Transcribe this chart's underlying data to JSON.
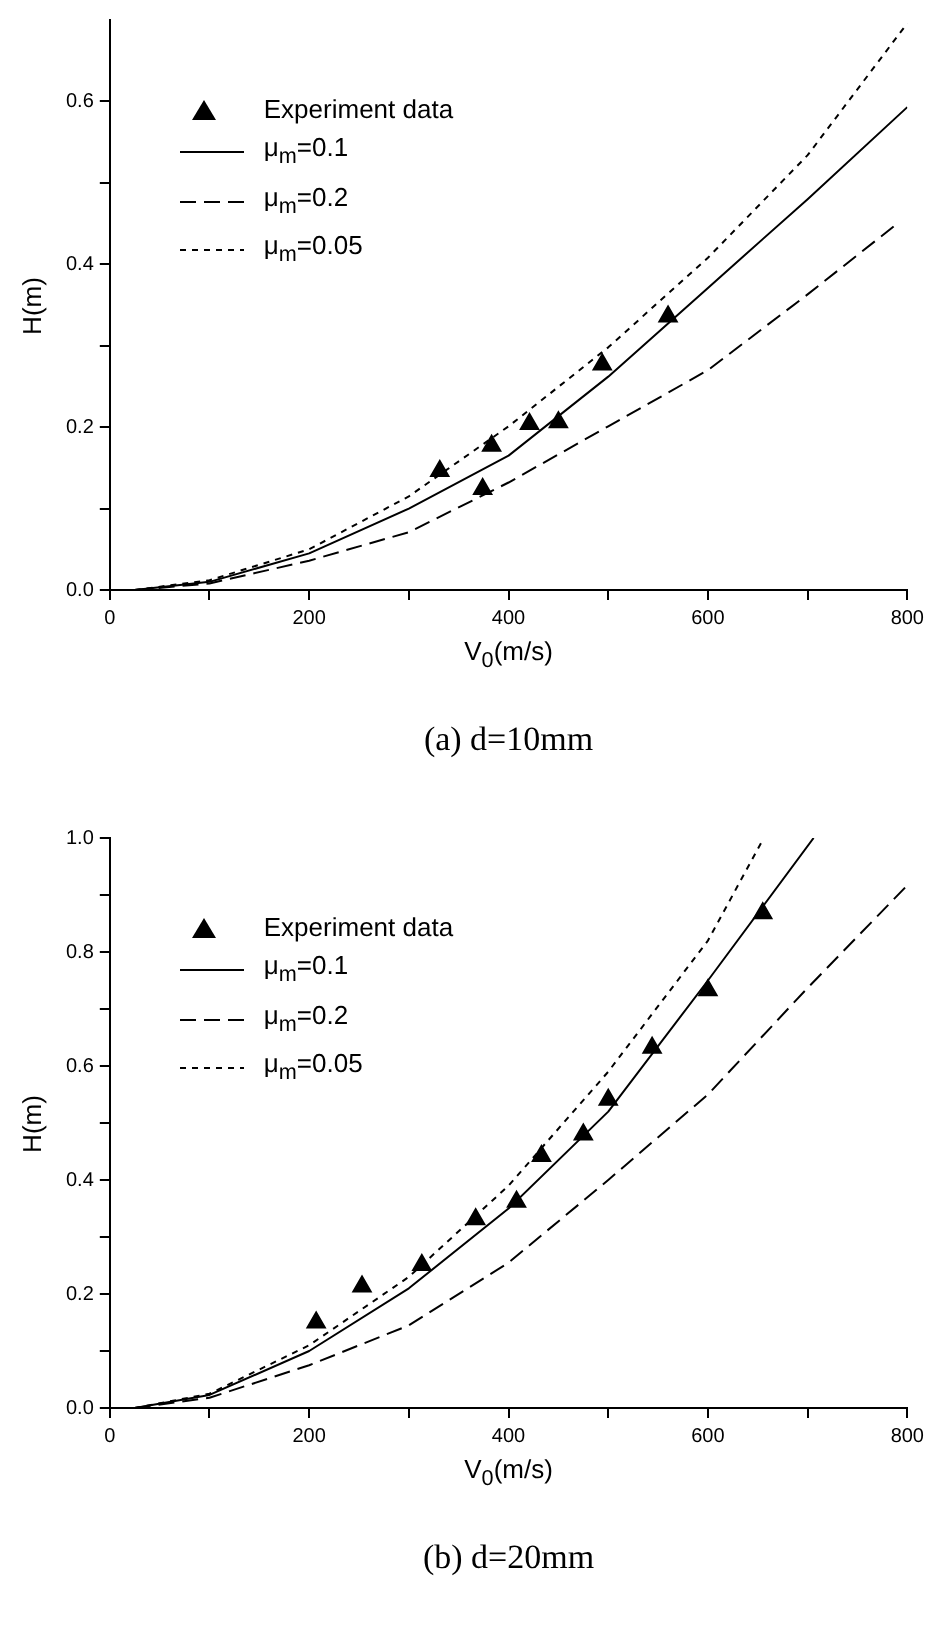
{
  "chart_data": [
    {
      "type": "line",
      "xlabel": "V$_{0}$(m/s)",
      "ylabel": "H(m)",
      "annotations": [
        "(a) d=10mm"
      ],
      "xlim": [
        0,
        800
      ],
      "xticks": [
        0,
        {
          "value": 100,
          "label": null
        },
        200,
        {
          "value": 300,
          "label": null
        },
        400,
        {
          "value": 500,
          "label": null
        },
        600,
        {
          "value": 700,
          "label": null
        },
        800
      ],
      "ylim": [
        0,
        0.7
      ],
      "yticks": [
        {
          "value": 0,
          "label": "0.0"
        },
        {
          "value": 0.1,
          "label": null
        },
        {
          "value": 0.2,
          "label": "0.2"
        },
        {
          "value": 0.3,
          "label": null
        },
        {
          "value": 0.4,
          "label": "0.4"
        },
        {
          "value": 0.5,
          "label": null
        },
        {
          "value": 0.6,
          "label": "0.6"
        }
      ],
      "grid": false,
      "legend": "top left",
      "series": [
        {
          "name": "Experiment data",
          "type": "scatter",
          "marker": "triangle",
          "color": "#000000",
          "x": [
            331,
            374,
            383,
            421,
            450,
            494,
            560
          ],
          "values": [
            0.146,
            0.124,
            0.177,
            0.204,
            0.206,
            0.277,
            0.336
          ]
        },
        {
          "name": "μ$_{m}$=0.1",
          "type": "line",
          "line_style": "solid",
          "color": "#000000",
          "x": [
            25,
            100,
            200,
            300,
            400,
            500,
            600,
            700,
            800
          ],
          "values": [
            0,
            0.01,
            0.045,
            0.1,
            0.165,
            0.262,
            0.371,
            0.48,
            0.593
          ]
        },
        {
          "name": "μ$_{m}$=0.2",
          "type": "line",
          "line_style": "dashed",
          "color": "#000000",
          "x": [
            25,
            100,
            200,
            300,
            400,
            500,
            600,
            700,
            790
          ],
          "values": [
            0,
            0.008,
            0.036,
            0.071,
            0.132,
            0.201,
            0.27,
            0.363,
            0.45
          ]
        },
        {
          "name": "μ$_{m}$=0.05",
          "type": "line",
          "line_style": "dotted",
          "color": "#000000",
          "x": [
            25,
            100,
            200,
            300,
            400,
            500,
            600,
            700,
            800
          ],
          "values": [
            0,
            0.012,
            0.05,
            0.115,
            0.201,
            0.298,
            0.408,
            0.534,
            0.696
          ]
        }
      ]
    },
    {
      "type": "line",
      "xlabel": "V$_{0}$(m/s)",
      "ylabel": "H(m)",
      "annotations": [
        "(b) d=20mm"
      ],
      "xlim": [
        0,
        800
      ],
      "xticks": [
        0,
        {
          "value": 100,
          "label": null
        },
        200,
        {
          "value": 300,
          "label": null
        },
        400,
        {
          "value": 500,
          "label": null
        },
        600,
        {
          "value": 700,
          "label": null
        },
        800
      ],
      "ylim": [
        0,
        1.0
      ],
      "yticks": [
        {
          "value": 0,
          "label": "0.0"
        },
        {
          "value": 0.1,
          "label": null
        },
        {
          "value": 0.2,
          "label": "0.2"
        },
        {
          "value": 0.3,
          "label": null
        },
        {
          "value": 0.4,
          "label": "0.4"
        },
        {
          "value": 0.5,
          "label": null
        },
        {
          "value": 0.6,
          "label": "0.6"
        },
        {
          "value": 0.7,
          "label": null
        },
        {
          "value": 0.8,
          "label": "0.8"
        },
        {
          "value": 0.9,
          "label": null
        },
        {
          "value": 1.0,
          "label": "1.0"
        }
      ],
      "grid": false,
      "legend": "top left",
      "series": [
        {
          "name": "Experiment data",
          "type": "scatter",
          "marker": "triangle",
          "color": "#000000",
          "x": [
            207,
            253,
            313,
            367,
            408,
            433,
            475,
            500,
            544,
            600,
            655
          ],
          "values": [
            0.15,
            0.213,
            0.251,
            0.331,
            0.362,
            0.442,
            0.48,
            0.541,
            0.632,
            0.733,
            0.868
          ]
        },
        {
          "name": "μ$_{m}$=0.1",
          "type": "line",
          "line_style": "solid",
          "color": "#000000",
          "x": [
            25,
            100,
            200,
            300,
            400,
            500,
            600,
            706
          ],
          "values": [
            0,
            0.023,
            0.1,
            0.21,
            0.35,
            0.52,
            0.75,
            1.0
          ]
        },
        {
          "name": "μ$_{m}$=0.2",
          "type": "line",
          "line_style": "dashed",
          "color": "#000000",
          "x": [
            25,
            100,
            200,
            300,
            400,
            500,
            600,
            700,
            800
          ],
          "values": [
            0,
            0.018,
            0.075,
            0.145,
            0.255,
            0.4,
            0.55,
            0.737,
            0.917
          ]
        },
        {
          "name": "μ$_{m}$=0.05",
          "type": "line",
          "line_style": "dotted",
          "color": "#000000",
          "x": [
            25,
            100,
            200,
            300,
            400,
            500,
            600,
            656
          ],
          "values": [
            0,
            0.025,
            0.11,
            0.23,
            0.39,
            0.59,
            0.82,
            1.0
          ]
        }
      ]
    }
  ]
}
